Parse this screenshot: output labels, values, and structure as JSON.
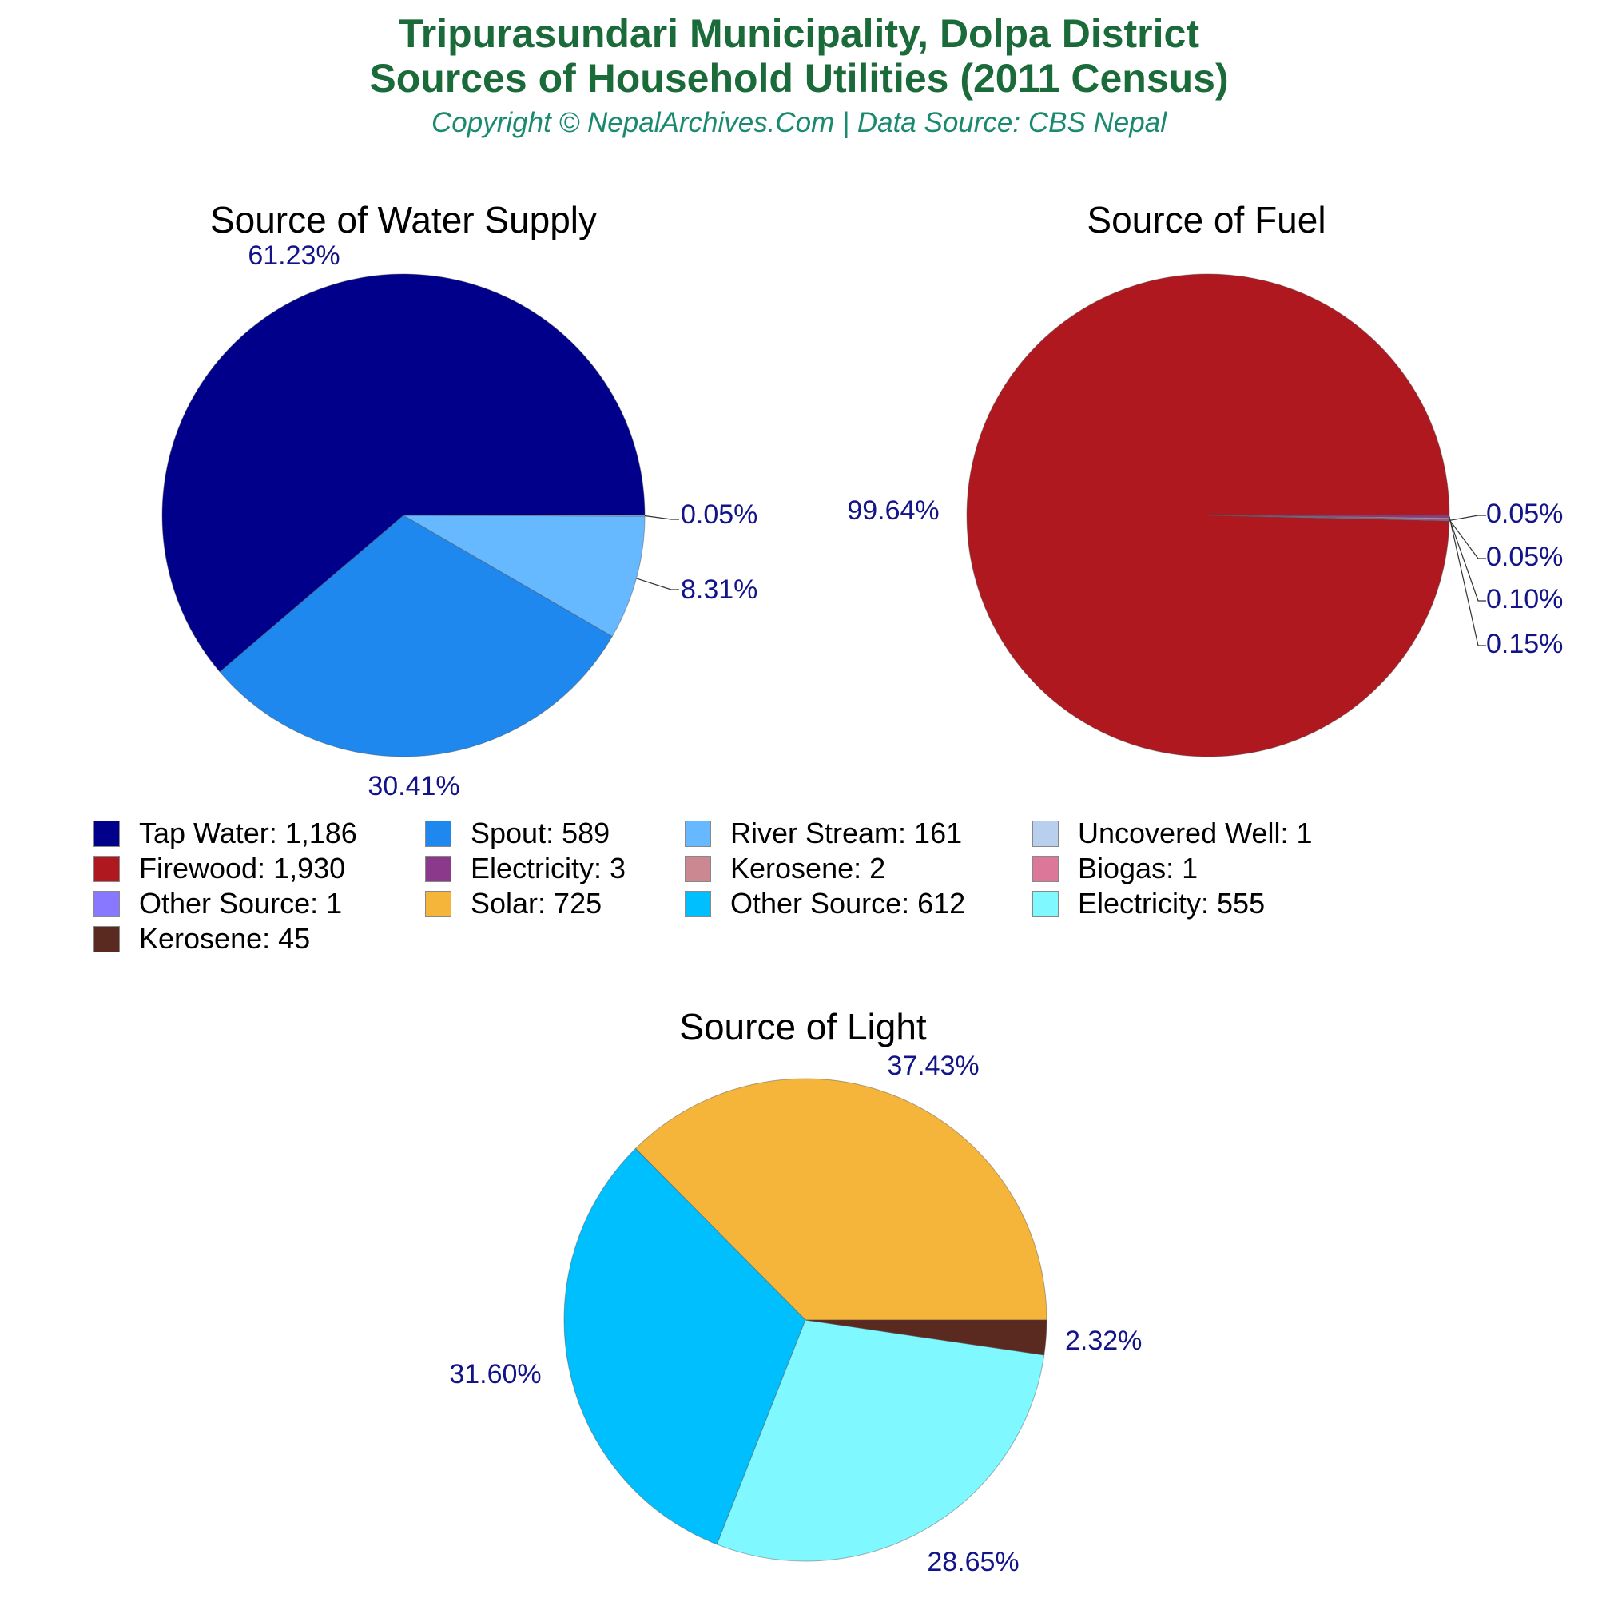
{
  "header": {
    "title_line1": "Tripurasundari Municipality, Dolpa District",
    "title_line2": "Sources of Household Utilities (2011 Census)",
    "subtitle": "Copyright © NepalArchives.Com | Data Source: CBS Nepal"
  },
  "chart_data": [
    {
      "type": "pie",
      "title": "Source of Water Supply",
      "slices": [
        {
          "label": "Tap Water",
          "value": 1186,
          "percent_label": "61.23%",
          "color": "#00008b"
        },
        {
          "label": "Spout",
          "value": 589,
          "percent_label": "30.41%",
          "color": "#1e88ee"
        },
        {
          "label": "River Stream",
          "value": 161,
          "percent_label": "8.31%",
          "color": "#66b8ff"
        },
        {
          "label": "Uncovered Well",
          "value": 1,
          "percent_label": "0.05%",
          "color": "#b8d0ee"
        }
      ]
    },
    {
      "type": "pie",
      "title": "Source of Fuel",
      "slices": [
        {
          "label": "Firewood",
          "value": 1930,
          "percent_label": "99.64%",
          "color": "#b01820"
        },
        {
          "label": "Electricity",
          "value": 3,
          "percent_label": "0.15%",
          "color": "#8b3a8b"
        },
        {
          "label": "Kerosene",
          "value": 2,
          "percent_label": "0.10%",
          "color": "#cc8890"
        },
        {
          "label": "Biogas",
          "value": 1,
          "percent_label": "0.05%",
          "color": "#dd7799"
        },
        {
          "label": "Other Source",
          "value": 1,
          "percent_label": "0.05%",
          "color": "#8877ff"
        }
      ]
    },
    {
      "type": "pie",
      "title": "Source of Light",
      "slices": [
        {
          "label": "Solar",
          "value": 725,
          "percent_label": "37.43%",
          "color": "#f5b53a"
        },
        {
          "label": "Other Source",
          "value": 612,
          "percent_label": "31.60%",
          "color": "#00bfff"
        },
        {
          "label": "Electricity",
          "value": 555,
          "percent_label": "28.65%",
          "color": "#80f8ff"
        },
        {
          "label": "Kerosene",
          "value": 45,
          "percent_label": "2.32%",
          "color": "#5a2a20"
        }
      ]
    }
  ],
  "legend": [
    {
      "label": "Tap Water: 1,186",
      "color": "#00008b"
    },
    {
      "label": "Spout: 589",
      "color": "#1e88ee"
    },
    {
      "label": "River Stream: 161",
      "color": "#66b8ff"
    },
    {
      "label": "Uncovered Well: 1",
      "color": "#b8d0ee"
    },
    {
      "label": "Firewood: 1,930",
      "color": "#b01820"
    },
    {
      "label": "Electricity: 3",
      "color": "#8b3a8b"
    },
    {
      "label": "Kerosene: 2",
      "color": "#cc8890"
    },
    {
      "label": "Biogas: 1",
      "color": "#dd7799"
    },
    {
      "label": "Other Source: 1",
      "color": "#8877ff"
    },
    {
      "label": "Solar: 725",
      "color": "#f5b53a"
    },
    {
      "label": "Other Source: 612",
      "color": "#00bfff"
    },
    {
      "label": "Electricity: 555",
      "color": "#80f8ff"
    },
    {
      "label": "Kerosene: 45",
      "color": "#5a2a20"
    }
  ]
}
